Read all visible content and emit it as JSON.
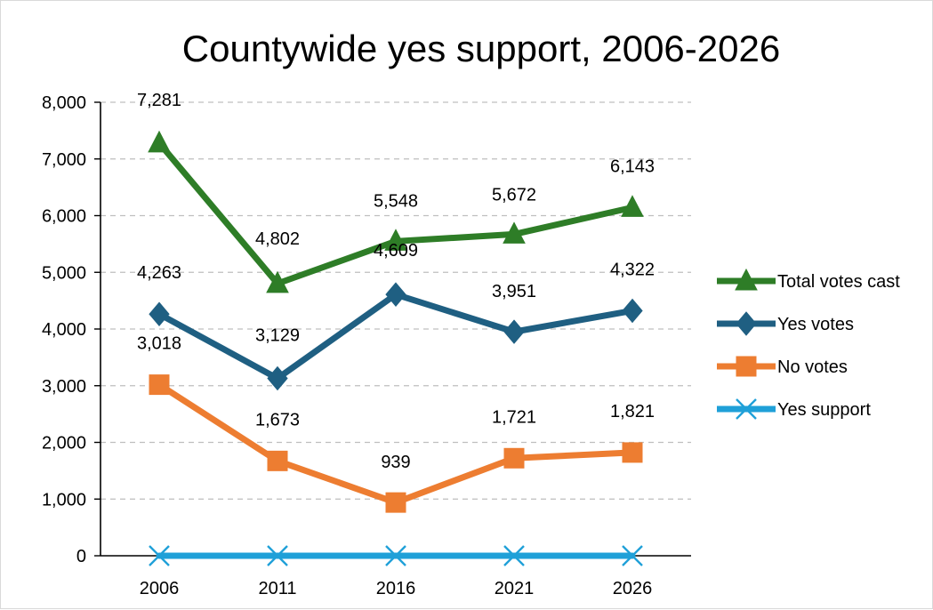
{
  "chart_data": {
    "type": "line",
    "title": "Countywide yes support, 2006-2026",
    "xlabel": "",
    "ylabel": "",
    "categories": [
      "2006",
      "2011",
      "2016",
      "2021",
      "2026"
    ],
    "ylim": [
      0,
      8000
    ],
    "yticks": [
      0,
      1000,
      2000,
      3000,
      4000,
      5000,
      6000,
      7000,
      8000
    ],
    "ytick_labels": [
      "0",
      "1,000",
      "2,000",
      "3,000",
      "4,000",
      "5,000",
      "6,000",
      "7,000",
      "8,000"
    ],
    "grid": "horizontal dashed",
    "legend_position": "right",
    "series": [
      {
        "name": "Total votes cast",
        "values": [
          7281,
          4802,
          5548,
          5672,
          6143
        ],
        "labels": [
          "7,281",
          "4,802",
          "5,548",
          "5,672",
          "6,143"
        ],
        "color": "#2e7d27",
        "marker": "triangle"
      },
      {
        "name": "Yes votes",
        "values": [
          4263,
          3129,
          4609,
          3951,
          4322
        ],
        "labels": [
          "4,263",
          "3,129",
          "4,609",
          "3,951",
          "4,322"
        ],
        "color": "#1f5f82",
        "marker": "diamond"
      },
      {
        "name": "No votes",
        "values": [
          3018,
          1673,
          939,
          1721,
          1821
        ],
        "labels": [
          "3,018",
          "1,673",
          "939",
          "1,721",
          "1,821"
        ],
        "color": "#ed7d31",
        "marker": "square"
      },
      {
        "name": "Yes support",
        "values": [
          0,
          0,
          0,
          0,
          0
        ],
        "labels": [
          "",
          "",
          "",
          "",
          ""
        ],
        "color": "#1fa0d8",
        "marker": "x"
      }
    ]
  }
}
